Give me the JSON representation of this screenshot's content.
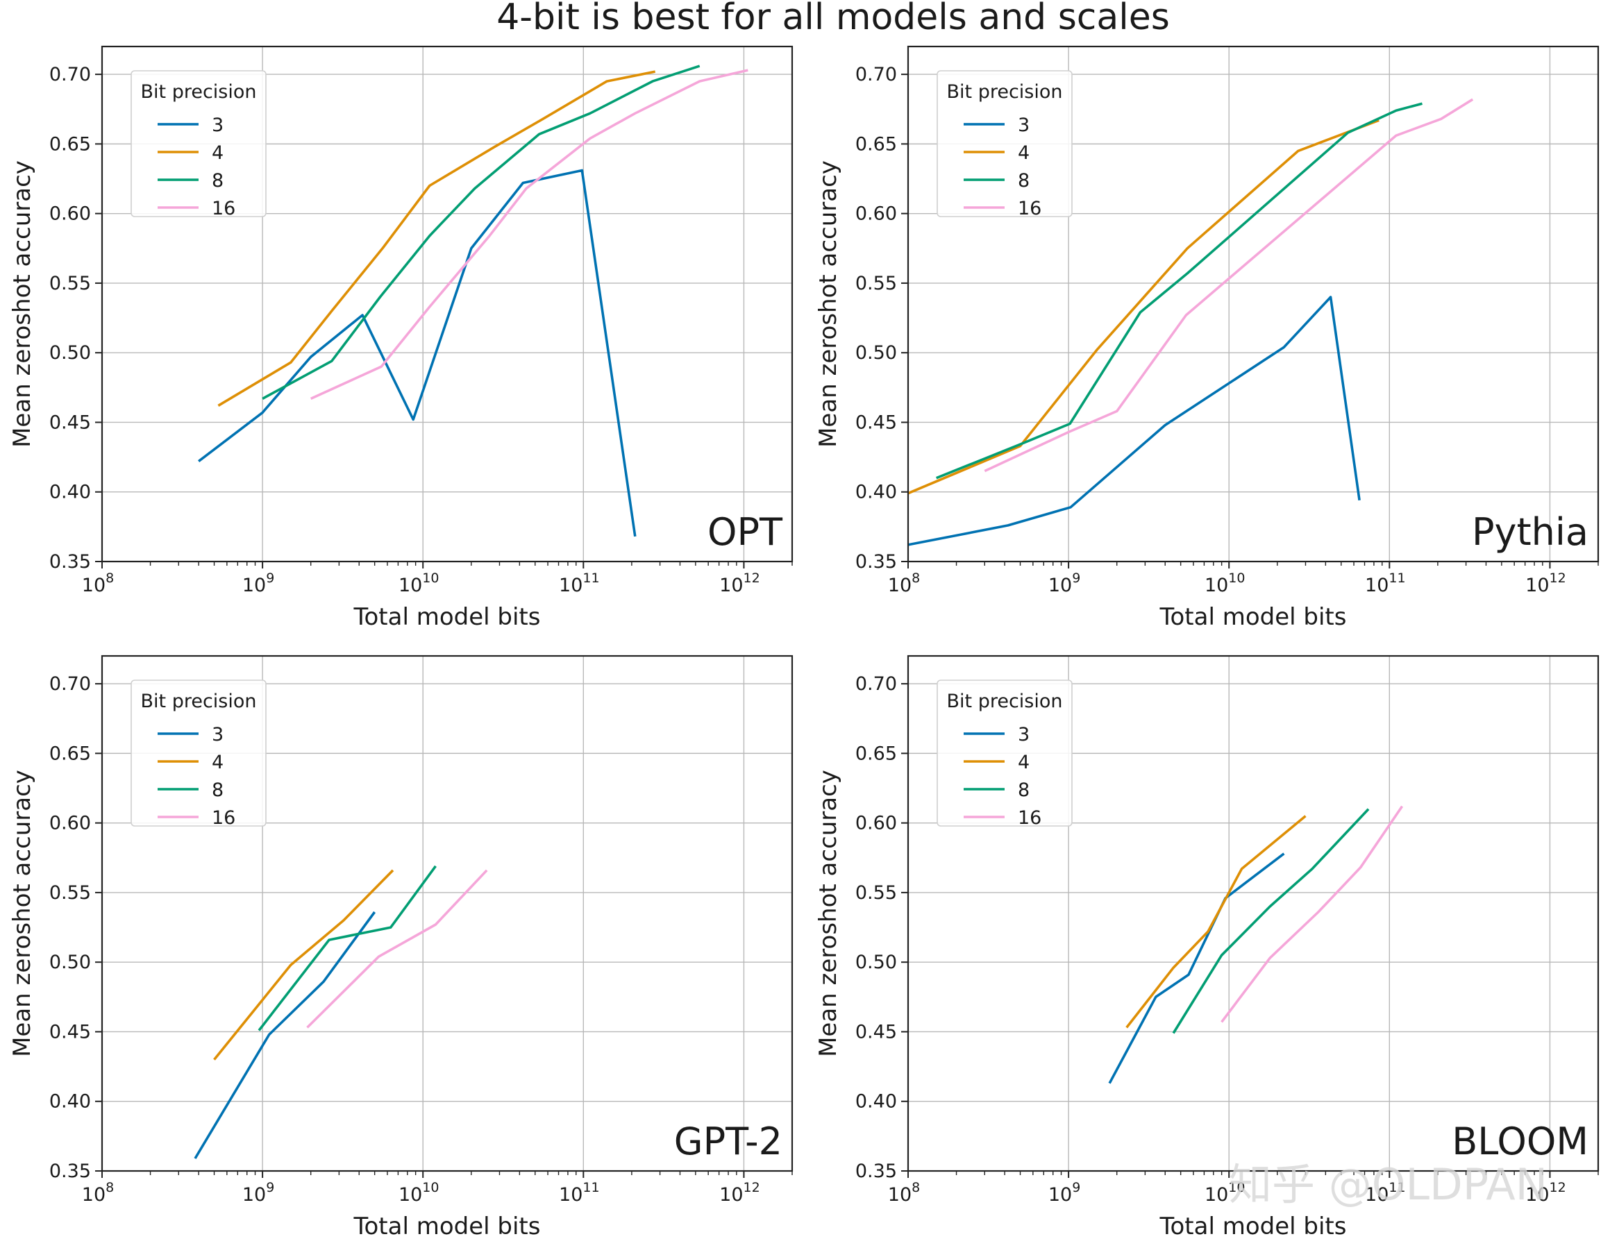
{
  "figure_title": "4-bit is best for all models and scales",
  "watermark": "知乎 @OLDPAN",
  "colors": {
    "3": "#0072b2",
    "4": "#de8f05",
    "8": "#029e73",
    "16": "#f5a6d9"
  },
  "chart_data": [
    {
      "type": "line",
      "panel_label": "OPT",
      "xlabel": "Total model bits",
      "ylabel": "Mean zeroshot accuracy",
      "xscale": "log",
      "xlim": [
        100000000.0,
        2000000000000.0
      ],
      "ylim": [
        0.35,
        0.72
      ],
      "xticks": [
        {
          "base": "10",
          "exp": "8"
        },
        {
          "base": "10",
          "exp": "9"
        },
        {
          "base": "10",
          "exp": "10"
        },
        {
          "base": "10",
          "exp": "11"
        },
        {
          "base": "10",
          "exp": "12"
        }
      ],
      "yticks": [
        "0.35",
        "0.40",
        "0.45",
        "0.50",
        "0.55",
        "0.60",
        "0.65",
        "0.70"
      ],
      "grid": true,
      "legend": {
        "title": "Bit precision",
        "location": "upper-left",
        "entries": [
          "3",
          "4",
          "8",
          "16"
        ]
      },
      "series": [
        {
          "name": "3",
          "x": [
            400000000.0,
            1000000000.0,
            2000000000.0,
            4200000000.0,
            8700000000.0,
            20000000000.0,
            42000000000.0,
            98000000000.0,
            210000000000.0
          ],
          "y": [
            0.422,
            0.457,
            0.497,
            0.527,
            0.452,
            0.575,
            0.622,
            0.631,
            0.368
          ]
        },
        {
          "name": "4",
          "x": [
            530000000.0,
            1500000000.0,
            2700000000.0,
            5600000000.0,
            11000000000.0,
            28000000000.0,
            56000000000.0,
            140000000000.0,
            280000000000.0
          ],
          "y": [
            0.462,
            0.493,
            0.53,
            0.575,
            0.62,
            0.648,
            0.668,
            0.695,
            0.702
          ]
        },
        {
          "name": "8",
          "x": [
            1000000000.0,
            2700000000.0,
            5400000000.0,
            11000000000.0,
            21000000000.0,
            53000000000.0,
            110000000000.0,
            270000000000.0,
            530000000000.0
          ],
          "y": [
            0.467,
            0.494,
            0.54,
            0.584,
            0.618,
            0.657,
            0.672,
            0.695,
            0.706
          ]
        },
        {
          "name": "16",
          "x": [
            2000000000.0,
            5500000000.0,
            11000000000.0,
            26000000000.0,
            44000000000.0,
            110000000000.0,
            210000000000.0,
            530000000000.0,
            1060000000000.0
          ],
          "y": [
            0.467,
            0.49,
            0.533,
            0.584,
            0.618,
            0.654,
            0.672,
            0.695,
            0.703
          ]
        }
      ]
    },
    {
      "type": "line",
      "panel_label": "Pythia",
      "xlabel": "Total model bits",
      "ylabel": "Mean zeroshot accuracy",
      "xscale": "log",
      "xlim": [
        100000000.0,
        2000000000000.0
      ],
      "ylim": [
        0.35,
        0.72
      ],
      "xticks": [
        {
          "base": "10",
          "exp": "8"
        },
        {
          "base": "10",
          "exp": "9"
        },
        {
          "base": "10",
          "exp": "10"
        },
        {
          "base": "10",
          "exp": "11"
        },
        {
          "base": "10",
          "exp": "12"
        }
      ],
      "yticks": [
        "0.35",
        "0.40",
        "0.45",
        "0.50",
        "0.55",
        "0.60",
        "0.65",
        "0.70"
      ],
      "grid": true,
      "legend": {
        "title": "Bit precision",
        "location": "upper-left",
        "entries": [
          "3",
          "4",
          "8",
          "16"
        ]
      },
      "series": [
        {
          "name": "3",
          "x": [
            100000000.0,
            420000000.0,
            1030000000.0,
            4000000000.0,
            22000000000.0,
            43000000000.0,
            65000000000.0
          ],
          "y": [
            0.362,
            0.376,
            0.389,
            0.448,
            0.504,
            0.54,
            0.394
          ]
        },
        {
          "name": "4",
          "x": [
            100000000.0,
            500000000.0,
            1500000000.0,
            5500000000.0,
            27000000000.0,
            86000000000.0
          ],
          "y": [
            0.399,
            0.433,
            0.502,
            0.575,
            0.645,
            0.667
          ]
        },
        {
          "name": "8",
          "x": [
            150000000.0,
            520000000.0,
            1020000000.0,
            2800000000.0,
            5500000000.0,
            55000000000.0,
            110000000000.0,
            160000000000.0
          ],
          "y": [
            0.41,
            0.435,
            0.449,
            0.529,
            0.557,
            0.658,
            0.674,
            0.679
          ]
        },
        {
          "name": "16",
          "x": [
            300000000.0,
            1000000000.0,
            2000000000.0,
            5400000000.0,
            110000000000.0,
            210000000000.0,
            330000000000.0
          ],
          "y": [
            0.415,
            0.443,
            0.458,
            0.527,
            0.656,
            0.668,
            0.682
          ]
        }
      ]
    },
    {
      "type": "line",
      "panel_label": "GPT-2",
      "xlabel": "Total model bits",
      "ylabel": "Mean zeroshot accuracy",
      "xscale": "log",
      "xlim": [
        100000000.0,
        2000000000000.0
      ],
      "ylim": [
        0.35,
        0.72
      ],
      "xticks": [
        {
          "base": "10",
          "exp": "8"
        },
        {
          "base": "10",
          "exp": "9"
        },
        {
          "base": "10",
          "exp": "10"
        },
        {
          "base": "10",
          "exp": "11"
        },
        {
          "base": "10",
          "exp": "12"
        }
      ],
      "yticks": [
        "0.35",
        "0.40",
        "0.45",
        "0.50",
        "0.55",
        "0.60",
        "0.65",
        "0.70"
      ],
      "grid": true,
      "legend": {
        "title": "Bit precision",
        "location": "upper-left",
        "entries": [
          "3",
          "4",
          "8",
          "16"
        ]
      },
      "series": [
        {
          "name": "3",
          "x": [
            380000000.0,
            1100000000.0,
            2400000000.0,
            5000000000.0
          ],
          "y": [
            0.359,
            0.448,
            0.486,
            0.536
          ]
        },
        {
          "name": "4",
          "x": [
            500000000.0,
            1500000000.0,
            3200000000.0,
            6500000000.0
          ],
          "y": [
            0.43,
            0.498,
            0.53,
            0.566
          ]
        },
        {
          "name": "8",
          "x": [
            950000000.0,
            2600000000.0,
            6300000000.0,
            12000000000.0
          ],
          "y": [
            0.451,
            0.516,
            0.525,
            0.569
          ]
        },
        {
          "name": "16",
          "x": [
            1900000000.0,
            5300000000.0,
            12000000000.0,
            25000000000.0
          ],
          "y": [
            0.453,
            0.504,
            0.527,
            0.566
          ]
        }
      ]
    },
    {
      "type": "line",
      "panel_label": "BLOOM",
      "xlabel": "Total model bits",
      "ylabel": "Mean zeroshot accuracy",
      "xscale": "log",
      "xlim": [
        100000000.0,
        2000000000000.0
      ],
      "ylim": [
        0.35,
        0.72
      ],
      "xticks": [
        {
          "base": "10",
          "exp": "8"
        },
        {
          "base": "10",
          "exp": "9"
        },
        {
          "base": "10",
          "exp": "10"
        },
        {
          "base": "10",
          "exp": "11"
        },
        {
          "base": "10",
          "exp": "12"
        }
      ],
      "yticks": [
        "0.35",
        "0.40",
        "0.45",
        "0.50",
        "0.55",
        "0.60",
        "0.65",
        "0.70"
      ],
      "grid": true,
      "legend": {
        "title": "Bit precision",
        "location": "upper-left",
        "entries": [
          "3",
          "4",
          "8",
          "16"
        ]
      },
      "series": [
        {
          "name": "3",
          "x": [
            1800000000.0,
            3500000000.0,
            5600000000.0,
            9500000000.0,
            22000000000.0
          ],
          "y": [
            0.413,
            0.475,
            0.491,
            0.546,
            0.578
          ]
        },
        {
          "name": "4",
          "x": [
            2300000000.0,
            4500000000.0,
            7400000000.0,
            12000000000.0,
            30000000000.0
          ],
          "y": [
            0.453,
            0.496,
            0.522,
            0.567,
            0.605
          ]
        },
        {
          "name": "8",
          "x": [
            4500000000.0,
            9000000000.0,
            18000000000.0,
            33000000000.0,
            74000000000.0
          ],
          "y": [
            0.449,
            0.505,
            0.54,
            0.567,
            0.61
          ]
        },
        {
          "name": "16",
          "x": [
            9000000000.0,
            18000000000.0,
            36000000000.0,
            66000000000.0,
            120000000000.0
          ],
          "y": [
            0.457,
            0.503,
            0.536,
            0.568,
            0.612
          ]
        }
      ]
    }
  ]
}
